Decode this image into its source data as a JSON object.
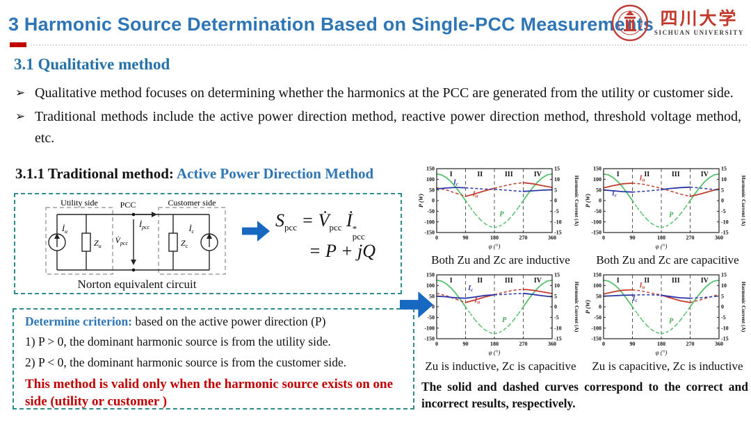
{
  "slide": {
    "title": "3 Harmonic Source Determination Based on Single-PCC Measurements",
    "logo": {
      "cn": "四川大学",
      "en": "SICHUAN UNIVERSITY"
    },
    "section_heading": "3.1 Qualitative method",
    "bullet_glyph": "➢",
    "bullets": [
      "Qualitative method focuses on determining whether the harmonics at the PCC are generated from the utility or customer side.",
      "Traditional methods include the active power direction method, reactive power direction method, threshold voltage method, etc."
    ],
    "subsection": {
      "prefix": "3.1.1 Traditional method: ",
      "highlight": "Active Power Direction Method"
    },
    "circuit": {
      "utility": "Utility side",
      "customer": "Customer side",
      "pcc": "PCC",
      "iu_base": "İ",
      "iu_sub": "u",
      "zu_base": "Z",
      "zu_sub": "u",
      "vpcc_base": "V̇",
      "vpcc_sub": "pcc",
      "ipcc_base": "İ",
      "ipcc_sub": "pcc",
      "zc_base": "Z",
      "zc_sub": "c",
      "ic_base": "İ",
      "ic_sub": "c",
      "caption": "Norton equivalent circuit"
    },
    "equation": {
      "s": "S",
      "s_sub": "pcc",
      "eq1": "=",
      "v": "V̇",
      "v_sub": "pcc",
      "i": "İ",
      "i_sup": "*",
      "i_sub": "pcc",
      "line2": "= P + jQ"
    },
    "criterion": {
      "label": "Determine criterion:",
      "intro": " based on the active power direction (P)",
      "items": [
        "1) P > 0,  the dominant harmonic source is from the utility side.",
        "2) P < 0,  the dominant harmonic source is from the customer side."
      ],
      "warning": "This method is valid only when the harmonic source exists on one side (utility or customer )"
    },
    "footer_note": "The solid and dashed curves correspond to the correct and incorrect results, respectively.",
    "colors": {
      "title_blue": "#2e75b6",
      "heading_blue": "#2470a8",
      "warning_red": "#c00000",
      "arrow_blue": "#1668c0",
      "box_teal": "#2e8b8b",
      "series_green": "#55c06a",
      "series_red": "#c23b2e",
      "series_blue": "#2a35a8"
    }
  },
  "chart_data": [
    {
      "type": "line",
      "caption": "Both Zu and Zc are inductive",
      "xlabel": "φ (°)",
      "ylabel_left": "P (W)",
      "ylabel_right": "Harmonic Current (A)",
      "xlim": [
        0,
        360
      ],
      "ylim_left": [
        -150,
        150
      ],
      "ylim_right": [
        -15,
        15
      ],
      "xticks": [
        0,
        90,
        180,
        270,
        360
      ],
      "yticks_left": [
        150,
        100,
        50,
        0,
        -50,
        -100,
        -150
      ],
      "yticks_right": [
        15,
        10,
        5,
        0,
        -5,
        -10,
        -15
      ],
      "region_labels": [
        "I",
        "II",
        "III",
        "IV"
      ],
      "vlines": [
        90,
        180,
        270
      ],
      "series": [
        {
          "name": "P",
          "axis": "left",
          "color": "#55c06a",
          "x": [
            0,
            15,
            30,
            45,
            60,
            75,
            90,
            105,
            120,
            135,
            150,
            165,
            180,
            195,
            210,
            225,
            240,
            255,
            270,
            285,
            300,
            315,
            330,
            345,
            360
          ],
          "y": [
            125,
            121,
            108,
            88,
            62,
            32,
            0,
            -32,
            -62,
            -88,
            -108,
            -121,
            -127,
            -121,
            -108,
            -88,
            -62,
            -32,
            0,
            32,
            62,
            88,
            108,
            121,
            125
          ],
          "solid": [
            [
              0,
              90
            ],
            [
              270,
              360
            ]
          ]
        },
        {
          "name": "Iu",
          "axis": "right",
          "color": "#c23b2e",
          "x": [
            0,
            30,
            60,
            90,
            120,
            150,
            180,
            210,
            240,
            270,
            300,
            330,
            360
          ],
          "y": [
            6,
            5,
            3.5,
            2,
            3.2,
            4.6,
            5.8,
            6.9,
            7.9,
            8.4,
            7.9,
            7,
            6.2
          ],
          "solid": [
            [
              90,
              180
            ],
            [
              270,
              360
            ]
          ]
        },
        {
          "name": "Ic",
          "axis": "right",
          "color": "#2a35a8",
          "x": [
            0,
            30,
            60,
            90,
            120,
            150,
            180,
            210,
            240,
            270,
            300,
            330,
            360
          ],
          "y": [
            5.5,
            5.9,
            6.2,
            6,
            5.7,
            5.4,
            5.3,
            5,
            4.6,
            4.3,
            4.6,
            4.9,
            5.1
          ],
          "solid": [
            [
              0,
              90
            ],
            [
              270,
              360
            ]
          ]
        }
      ],
      "labels": [
        {
          "base": "I",
          "sub": "c",
          "x": 52,
          "y": 7.6,
          "color": "#2a35a8"
        },
        {
          "base": "I",
          "sub": "u",
          "x": 112,
          "y": 2.2,
          "color": "#c23b2e"
        },
        {
          "base": "P",
          "sub": "",
          "x": 196,
          "y": -7.4,
          "color": "#3aa84f"
        }
      ]
    },
    {
      "type": "line",
      "caption": "Both Zu and Zc are capacitive",
      "xlabel": "φ (°)",
      "ylabel_left": "P (W)",
      "ylabel_right": "Harmonic Current (A)",
      "xlim": [
        0,
        360
      ],
      "ylim_left": [
        -150,
        150
      ],
      "ylim_right": [
        -15,
        15
      ],
      "xticks": [
        0,
        90,
        180,
        270,
        360
      ],
      "yticks_left": [
        150,
        100,
        50,
        0,
        -50,
        -100,
        -150
      ],
      "yticks_right": [
        15,
        10,
        5,
        0,
        -5,
        -10,
        -15
      ],
      "region_labels": [
        "I",
        "II",
        "III",
        "IV"
      ],
      "vlines": [
        90,
        180,
        270
      ],
      "series": [
        {
          "name": "P",
          "axis": "left",
          "color": "#55c06a",
          "x": [
            0,
            15,
            30,
            45,
            60,
            75,
            90,
            105,
            120,
            135,
            150,
            165,
            180,
            195,
            210,
            225,
            240,
            255,
            270,
            285,
            300,
            315,
            330,
            345,
            360
          ],
          "y": [
            125,
            121,
            108,
            88,
            62,
            32,
            0,
            -32,
            -62,
            -88,
            -108,
            -121,
            -127,
            -121,
            -108,
            -88,
            -62,
            -32,
            0,
            32,
            62,
            88,
            108,
            121,
            125
          ],
          "solid": [
            [
              0,
              90
            ],
            [
              270,
              360
            ]
          ]
        },
        {
          "name": "Iu",
          "axis": "right",
          "color": "#c23b2e",
          "x": [
            0,
            30,
            60,
            90,
            120,
            150,
            180,
            210,
            240,
            270,
            300,
            330,
            360
          ],
          "y": [
            6,
            7,
            7.9,
            8.2,
            7.8,
            6.8,
            5.7,
            4.4,
            3,
            2,
            3,
            4.3,
            5.5
          ],
          "solid": [
            [
              0,
              90
            ],
            [
              270,
              360
            ]
          ]
        },
        {
          "name": "Ic",
          "axis": "right",
          "color": "#2a35a8",
          "x": [
            0,
            30,
            60,
            90,
            120,
            150,
            180,
            210,
            240,
            270,
            300,
            330,
            360
          ],
          "y": [
            5,
            4.6,
            4.2,
            4,
            4.3,
            4.7,
            5.2,
            5.7,
            6.1,
            6.3,
            5.9,
            5.4,
            5
          ],
          "solid": [
            [
              0,
              90
            ],
            [
              180,
              270
            ]
          ]
        }
      ],
      "labels": [
        {
          "base": "I",
          "sub": "u",
          "x": 112,
          "y": 9.6,
          "color": "#c23b2e"
        },
        {
          "base": "I",
          "sub": "c",
          "x": 26,
          "y": 2.4,
          "color": "#2a35a8"
        },
        {
          "base": "P",
          "sub": "",
          "x": 204,
          "y": -7.6,
          "color": "#3aa84f"
        }
      ]
    },
    {
      "type": "line",
      "caption": "Zu is inductive, Zc is capacitive",
      "xlabel": "φ (°)",
      "ylabel_left": "P (W)",
      "ylabel_right": "Harmonic Current (A)",
      "xlim": [
        0,
        360
      ],
      "ylim_left": [
        -150,
        150
      ],
      "ylim_right": [
        -15,
        15
      ],
      "xticks": [
        0,
        90,
        180,
        270,
        360
      ],
      "yticks_left": [
        150,
        100,
        50,
        0,
        -50,
        -100,
        -150
      ],
      "yticks_right": [
        15,
        10,
        5,
        0,
        -5,
        -10,
        -15
      ],
      "region_labels": [
        "I",
        "II",
        "III",
        "IV"
      ],
      "vlines": [
        90,
        180,
        270
      ],
      "series": [
        {
          "name": "P",
          "axis": "left",
          "color": "#55c06a",
          "x": [
            0,
            15,
            30,
            45,
            60,
            75,
            90,
            105,
            120,
            135,
            150,
            165,
            180,
            195,
            210,
            225,
            240,
            255,
            270,
            285,
            300,
            315,
            330,
            345,
            360
          ],
          "y": [
            125,
            121,
            108,
            88,
            62,
            32,
            0,
            -32,
            -62,
            -88,
            -108,
            -121,
            -127,
            -121,
            -108,
            -88,
            -62,
            -32,
            0,
            32,
            62,
            88,
            108,
            121,
            125
          ],
          "solid": [
            [
              0,
              90
            ],
            [
              270,
              360
            ]
          ]
        },
        {
          "name": "Iu",
          "axis": "right",
          "color": "#c23b2e",
          "x": [
            0,
            30,
            60,
            90,
            120,
            150,
            180,
            210,
            240,
            270,
            300,
            330,
            360
          ],
          "y": [
            6.3,
            5.2,
            3.6,
            2,
            3.2,
            4.6,
            5.7,
            6.8,
            7.8,
            8.2,
            7.8,
            7,
            6.2
          ],
          "solid": [
            [
              90,
              180
            ],
            [
              270,
              360
            ]
          ]
        },
        {
          "name": "Ic",
          "axis": "right",
          "color": "#2a35a8",
          "x": [
            0,
            30,
            60,
            90,
            120,
            150,
            180,
            210,
            240,
            270,
            300,
            330,
            360
          ],
          "y": [
            5,
            4.7,
            4.2,
            4,
            4.6,
            5.3,
            5.6,
            5.8,
            6.1,
            6.3,
            5.8,
            5.2,
            4.7
          ],
          "solid": [
            [
              0,
              180
            ],
            [
              270,
              360
            ]
          ]
        }
      ],
      "labels": [
        {
          "base": "I",
          "sub": "c",
          "x": 98,
          "y": 7.8,
          "color": "#2a35a8"
        },
        {
          "base": "I",
          "sub": "u",
          "x": 118,
          "y": 2.2,
          "color": "#c23b2e"
        },
        {
          "base": "P",
          "sub": "",
          "x": 204,
          "y": -7.2,
          "color": "#3aa84f"
        }
      ]
    },
    {
      "type": "line",
      "caption": "Zu is capacitive, Zc is inductive",
      "xlabel": "φ (°)",
      "ylabel_left": "P (W)",
      "ylabel_right": "Harmonic Current (A)",
      "xlim": [
        0,
        360
      ],
      "ylim_left": [
        -150,
        150
      ],
      "ylim_right": [
        -15,
        15
      ],
      "xticks": [
        0,
        90,
        180,
        270,
        360
      ],
      "yticks_left": [
        150,
        100,
        50,
        0,
        -50,
        -100,
        -150
      ],
      "yticks_right": [
        15,
        10,
        5,
        0,
        -5,
        -10,
        -15
      ],
      "region_labels": [
        "I",
        "II",
        "III",
        "IV"
      ],
      "vlines": [
        90,
        180,
        270
      ],
      "series": [
        {
          "name": "P",
          "axis": "left",
          "color": "#55c06a",
          "x": [
            0,
            15,
            30,
            45,
            60,
            75,
            90,
            105,
            120,
            135,
            150,
            165,
            180,
            195,
            210,
            225,
            240,
            255,
            270,
            285,
            300,
            315,
            330,
            345,
            360
          ],
          "y": [
            125,
            121,
            108,
            88,
            62,
            32,
            0,
            -32,
            -62,
            -88,
            -108,
            -121,
            -127,
            -121,
            -108,
            -88,
            -62,
            -32,
            0,
            32,
            62,
            88,
            108,
            121,
            125
          ],
          "solid": [
            [
              0,
              90
            ],
            [
              270,
              360
            ]
          ]
        },
        {
          "name": "Iu",
          "axis": "right",
          "color": "#c23b2e",
          "x": [
            0,
            30,
            60,
            90,
            120,
            150,
            180,
            210,
            240,
            270,
            300,
            330,
            360
          ],
          "y": [
            6,
            7,
            7.8,
            8,
            7.4,
            6.4,
            5.5,
            4.1,
            2.8,
            2,
            3.2,
            4.5,
            5.8
          ],
          "solid": [
            [
              0,
              90
            ],
            [
              180,
              270
            ]
          ]
        },
        {
          "name": "Ic",
          "axis": "right",
          "color": "#2a35a8",
          "x": [
            0,
            30,
            60,
            90,
            120,
            150,
            180,
            210,
            240,
            270,
            300,
            330,
            360
          ],
          "y": [
            5,
            5.2,
            5.4,
            5.5,
            5.6,
            5.6,
            5.4,
            4.8,
            4.2,
            4,
            4.2,
            4.6,
            5
          ],
          "solid": [
            [
              0,
              90
            ],
            [
              180,
              270
            ]
          ]
        }
      ],
      "labels": [
        {
          "base": "I",
          "sub": "u",
          "x": 112,
          "y": 9.2,
          "color": "#c23b2e"
        },
        {
          "base": "I",
          "sub": "c",
          "x": 90,
          "y": 3.0,
          "color": "#2a35a8"
        },
        {
          "base": "P",
          "sub": "",
          "x": 204,
          "y": -7.6,
          "color": "#3aa84f"
        }
      ]
    }
  ]
}
